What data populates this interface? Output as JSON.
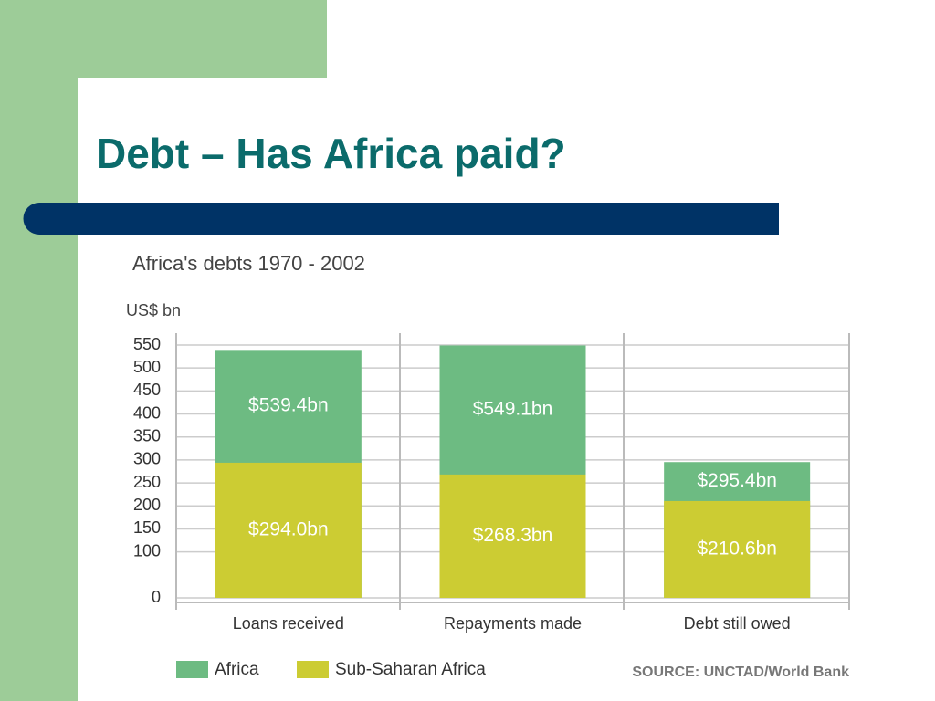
{
  "slide_title": "Debt – Has Africa paid?",
  "chart_data": {
    "type": "bar",
    "title": "Africa's debts 1970 - 2002",
    "y_label": "US$ bn",
    "source": "SOURCE: UNCTAD/World Bank",
    "categories": [
      "Loans received",
      "Repayments made",
      "Debt still owed"
    ],
    "series": [
      {
        "name": "Africa",
        "color": "#6dbb82",
        "values": [
          539.4,
          549.1,
          295.4
        ],
        "value_labels": [
          "$539.4bn",
          "$549.1bn",
          "$295.4bn"
        ]
      },
      {
        "name": "Sub-Saharan Africa",
        "color": "#cccc33",
        "values": [
          294.0,
          268.3,
          210.6
        ],
        "value_labels": [
          "$294.0bn",
          "$268.3bn",
          "$210.6bn"
        ]
      }
    ],
    "ylim": [
      0,
      550
    ],
    "yticks": [
      0,
      100,
      150,
      200,
      250,
      300,
      350,
      400,
      450,
      500,
      550
    ],
    "grid": true
  }
}
